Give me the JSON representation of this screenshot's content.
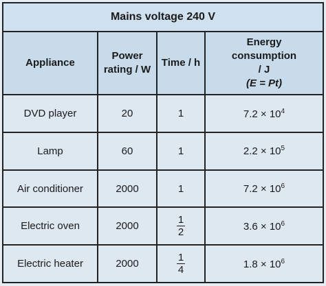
{
  "table": {
    "title": "Mains voltage 240 V",
    "headers": {
      "appliance": "Appliance",
      "power_line1": "Power",
      "power_line2": "rating / W",
      "time": "Time / h",
      "energy_line1": "Energy",
      "energy_line2": "consumption",
      "energy_line3": "/ J",
      "energy_formula": "(E = Pt)"
    },
    "rows": [
      {
        "appliance": "DVD player",
        "power": "20",
        "time": "1",
        "mantissa": "7.2 × 10",
        "exponent": "4"
      },
      {
        "appliance": "Lamp",
        "power": "60",
        "time": "1",
        "mantissa": "2.2 × 10",
        "exponent": "5"
      },
      {
        "appliance": "Air conditioner",
        "power": "2000",
        "time": "1",
        "mantissa": "7.2 × 10",
        "exponent": "6"
      },
      {
        "appliance": "Electric oven",
        "power": "2000",
        "time_num": "1",
        "time_den": "2",
        "mantissa": "3.6 × 10",
        "exponent": "6"
      },
      {
        "appliance": "Electric heater",
        "power": "2000",
        "time_num": "1",
        "time_den": "4",
        "mantissa": "1.8 × 10",
        "exponent": "6"
      }
    ]
  }
}
